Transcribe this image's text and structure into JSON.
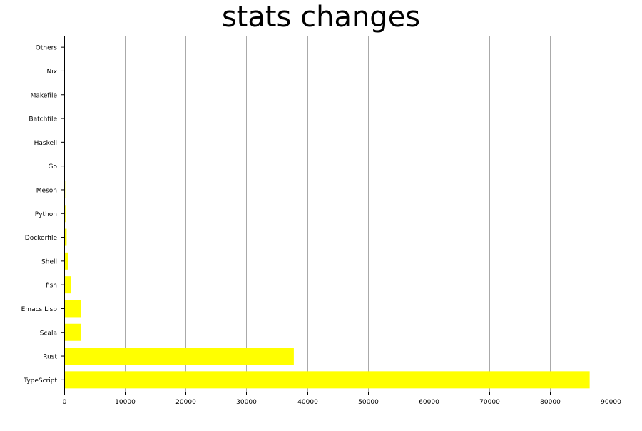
{
  "chart_data": {
    "type": "bar",
    "orientation": "horizontal",
    "title": "stats changes",
    "categories": [
      "TypeScript",
      "Rust",
      "Scala",
      "Emacs Lisp",
      "fish",
      "Shell",
      "Dockerfile",
      "Python",
      "Meson",
      "Go",
      "Haskell",
      "Batchfile",
      "Makefile",
      "Nix",
      "Others"
    ],
    "values": [
      86500,
      37800,
      2800,
      2800,
      1100,
      600,
      400,
      200,
      150,
      80,
      60,
      40,
      30,
      20,
      10
    ],
    "xticks": [
      0,
      10000,
      20000,
      30000,
      40000,
      50000,
      60000,
      70000,
      80000,
      90000
    ],
    "xlim": [
      0,
      95000
    ],
    "grid": "vertical",
    "bar_color": "#ffff00",
    "grid_color": "#aaaaaa",
    "axis_color": "#000000",
    "legend": "none"
  }
}
